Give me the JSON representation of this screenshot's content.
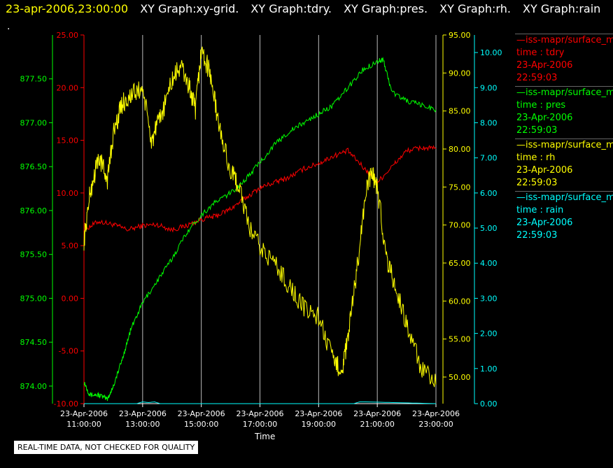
{
  "header": {
    "timestamp": "23-apr-2006,23:00:00",
    "graphs": [
      "XY Graph:xy-grid.",
      "XY Graph:tdry.",
      "XY Graph:pres.",
      "XY Graph:rh.",
      "XY Graph:rain"
    ]
  },
  "dot": ".",
  "footer_note": "REAL-TIME DATA, NOT CHECKED FOR QUALITY",
  "colors": {
    "tdry": "#ff0000",
    "pres": "#00ff00",
    "rh": "#ffff00",
    "rain": "#00ffff",
    "grid": "#ffffff"
  },
  "legend": [
    {
      "line1": "—iss-mapr/surface_m",
      "line2": "time : tdry",
      "line3": "23-Apr-2006",
      "line4": "22:59:03",
      "color": "#ff0000"
    },
    {
      "line1": "—iss-mapr/surface_m",
      "line2": "time : pres",
      "line3": "23-Apr-2006",
      "line4": "22:59:03",
      "color": "#00ff00"
    },
    {
      "line1": "—iss-mapr/surface_m",
      "line2": "time : rh",
      "line3": "23-Apr-2006",
      "line4": "22:59:03",
      "color": "#ffff00"
    },
    {
      "line1": "—iss-mapr/surface_m",
      "line2": "time : rain",
      "line3": "23-Apr-2006",
      "line4": "22:59:03",
      "color": "#00ffff"
    }
  ],
  "chart_data": {
    "type": "line",
    "xlabel": "Time",
    "x_ticks": [
      {
        "t": 11,
        "date": "23-Apr-2006",
        "time": "11:00:00"
      },
      {
        "t": 13,
        "date": "23-Apr-2006",
        "time": "13:00:00"
      },
      {
        "t": 15,
        "date": "23-Apr-2006",
        "time": "15:00:00"
      },
      {
        "t": 17,
        "date": "23-Apr-2006",
        "time": "17:00:00"
      },
      {
        "t": 19,
        "date": "23-Apr-2006",
        "time": "19:00:00"
      },
      {
        "t": 21,
        "date": "23-Apr-2006",
        "time": "21:00:00"
      },
      {
        "t": 23,
        "date": "23-Apr-2006",
        "time": "23:00:00"
      }
    ],
    "xlim": [
      11,
      23
    ],
    "axes": {
      "pres": {
        "ylim": [
          873.8,
          878.0
        ],
        "ticks": [
          "874.00",
          "874.50",
          "875.00",
          "875.50",
          "876.00",
          "876.50",
          "877.00",
          "877.50"
        ],
        "tick_values": [
          874.0,
          874.5,
          875.0,
          875.5,
          876.0,
          876.5,
          877.0,
          877.5
        ],
        "color": "#00ff00",
        "side": "left-outer"
      },
      "tdry": {
        "ylim": [
          -10,
          25
        ],
        "ticks": [
          "-10.00",
          "-5.00",
          "0.00",
          "5.00",
          "10.00",
          "15.00",
          "20.00",
          "25.00"
        ],
        "tick_values": [
          -10,
          -5,
          0,
          5,
          10,
          15,
          20,
          25
        ],
        "color": "#ff0000",
        "side": "left-inner"
      },
      "rh": {
        "ylim": [
          46.5,
          95
        ],
        "ticks": [
          "50.00",
          "55.00",
          "60.00",
          "65.00",
          "70.00",
          "75.00",
          "80.00",
          "85.00",
          "90.00",
          "95.00"
        ],
        "tick_values": [
          50,
          55,
          60,
          65,
          70,
          75,
          80,
          85,
          90,
          95
        ],
        "color": "#ffff00",
        "side": "right-inner"
      },
      "rain": {
        "ylim": [
          0,
          10.5
        ],
        "ticks": [
          "0.00",
          "1.00",
          "2.00",
          "3.00",
          "4.00",
          "5.00",
          "6.00",
          "7.00",
          "8.00",
          "9.00",
          "10.00"
        ],
        "tick_values": [
          0,
          1,
          2,
          3,
          4,
          5,
          6,
          7,
          8,
          9,
          10
        ],
        "color": "#00ffff",
        "side": "right-outer"
      }
    },
    "series": [
      {
        "name": "time : tdry",
        "axis": "tdry",
        "x": [
          11,
          11.5,
          12,
          12.5,
          13,
          13.5,
          14,
          14.5,
          15,
          15.5,
          16,
          16.5,
          17,
          17.5,
          18,
          18.5,
          19,
          19.5,
          20,
          20.5,
          21,
          21.5,
          22,
          22.5,
          23
        ],
        "y": [
          6.5,
          7.3,
          7.0,
          6.5,
          6.9,
          7.0,
          6.5,
          6.9,
          7.5,
          7.8,
          8.5,
          9.5,
          10.5,
          11.0,
          11.5,
          12.3,
          12.8,
          13.5,
          14.0,
          12.5,
          11.0,
          12.5,
          14.0,
          14.3,
          14.2
        ]
      },
      {
        "name": "time : pres",
        "axis": "pres",
        "x": [
          11,
          11.2,
          11.5,
          11.8,
          12,
          12.3,
          12.6,
          13,
          13.5,
          14,
          14.5,
          15,
          15.5,
          16,
          16.5,
          17,
          17.5,
          18,
          18.5,
          19,
          19.5,
          20,
          20.5,
          21,
          21.2,
          21.5,
          22,
          22.5,
          23
        ],
        "y": [
          874.05,
          873.9,
          873.9,
          873.85,
          874.0,
          874.3,
          874.65,
          874.95,
          875.2,
          875.45,
          875.75,
          875.95,
          876.1,
          876.2,
          876.35,
          876.55,
          876.75,
          876.9,
          877.0,
          877.1,
          877.2,
          877.4,
          877.6,
          877.7,
          877.72,
          877.35,
          877.25,
          877.2,
          877.15
        ]
      },
      {
        "name": "time : rh",
        "axis": "rh",
        "x": [
          11,
          11.2,
          11.5,
          11.8,
          12,
          12.3,
          12.6,
          13,
          13.3,
          13.6,
          14,
          14.3,
          14.6,
          14.8,
          15,
          15.3,
          15.6,
          16,
          16.3,
          16.6,
          17,
          17.5,
          18,
          18.5,
          19,
          19.5,
          19.8,
          20,
          20.3,
          20.6,
          20.8,
          21,
          21.3,
          21.6,
          22,
          22.5,
          23
        ],
        "y": [
          68,
          74,
          79,
          76,
          82,
          86,
          87,
          88,
          81,
          84,
          89,
          91,
          88,
          85,
          93,
          90,
          83,
          77,
          75,
          70,
          67,
          65,
          62,
          59,
          58,
          52,
          51,
          55,
          64,
          74,
          77,
          75,
          66,
          62,
          57,
          51,
          49
        ]
      },
      {
        "name": "time : rain",
        "axis": "rain",
        "x": [
          11,
          12.8,
          13.0,
          13.2,
          13.4,
          13.6,
          14,
          20.2,
          20.4,
          20.6,
          23
        ],
        "y": [
          0,
          0,
          0.05,
          0.03,
          0.05,
          0,
          0,
          0,
          0.05,
          0.05,
          0
        ]
      }
    ]
  }
}
